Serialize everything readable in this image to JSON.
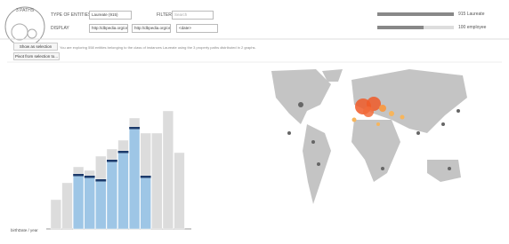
{
  "header": {
    "logo": "3 PATHS",
    "type_label": "TYPE OF ENTITIES",
    "type_value": "Laureate (915)",
    "filter_label": "FILTER",
    "filter_placeholder": "Search",
    "display_label": "DISPLAY",
    "display_1": "http://dbpedia.org/ont",
    "display_2": "http://dbpedia.org/ont",
    "display_3": "<date>",
    "stat_1": "915 Laureate",
    "stat_2": "100 employee"
  },
  "toolbar": {
    "show_selection": "Show as selection",
    "pivot": "Pivot from selection to...",
    "summary": "You are exploring 558 entities belonging to the class of instances Laureate using the 3 property paths distributed in 2 graphs."
  },
  "histogram": {
    "axis_label": "birthDate / year",
    "totals": [
      33,
      52,
      70,
      66,
      82,
      90,
      100,
      125,
      108,
      108,
      133,
      86
    ],
    "selected": [
      0,
      0,
      62,
      60,
      56,
      78,
      88,
      115,
      60,
      0,
      0,
      0
    ]
  }
}
